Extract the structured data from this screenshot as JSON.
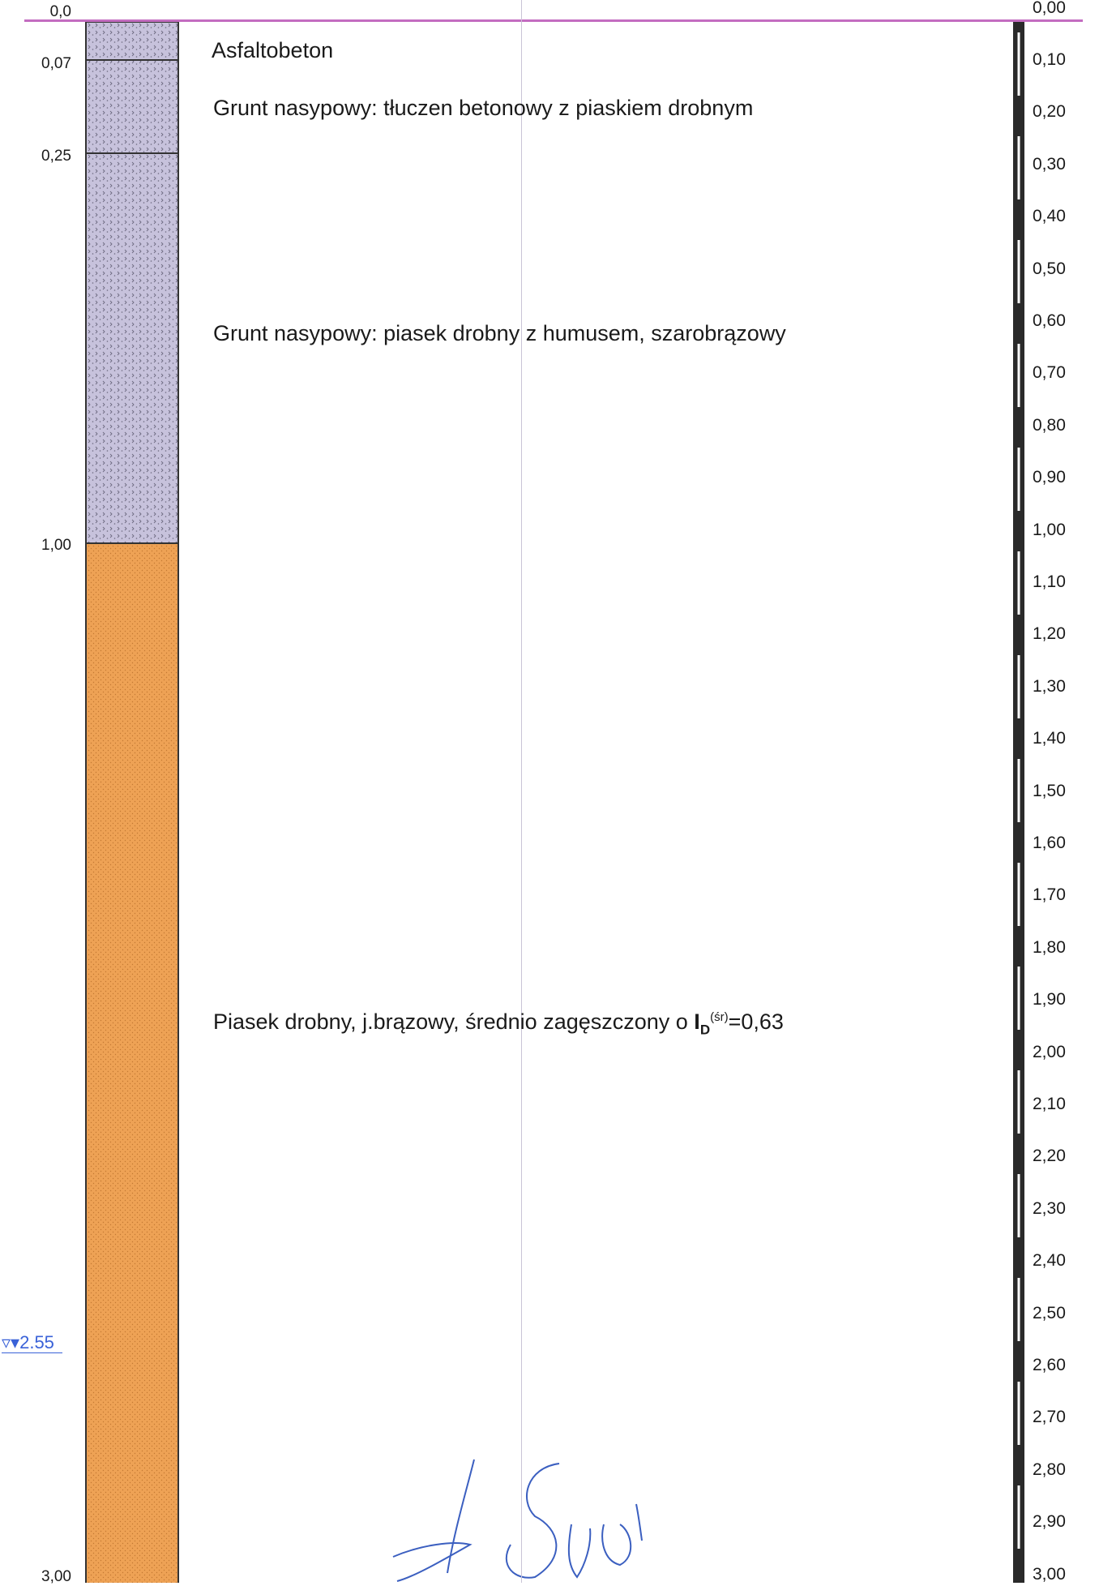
{
  "top_depth_left": "0,0",
  "scale_top_label": "0,00",
  "layer_depths": [
    "0,07",
    "0,25",
    "1,00",
    "3,00"
  ],
  "layers": [
    {
      "description": "Asfaltobeton",
      "color": "#c7c2dc"
    },
    {
      "description": "Grunt nasypowy: tłuczen betonowy z piaskiem drobnym",
      "color": "#c7c2dc"
    },
    {
      "description": "Grunt nasypowy: piasek drobny z humusem, szarobrązowy",
      "color": "#c7c2dc"
    },
    {
      "description_prefix": "Piasek drobny, j.brązowy, średnio zagęszczony o ",
      "description_symbol": "I",
      "description_subscript": "D",
      "description_superscript": "(śr)",
      "description_suffix": "=0,63",
      "color": "#eea255"
    }
  ],
  "water_level": {
    "symbol": "▿▾",
    "value": "2.55",
    "color": "#3a62d8"
  },
  "scale_labels": [
    "0,10",
    "0,20",
    "0,30",
    "0,40",
    "0,50",
    "0,60",
    "0,70",
    "0,80",
    "0,90",
    "1,00",
    "1,10",
    "1,20",
    "1,30",
    "1,40",
    "1,50",
    "1,60",
    "1,70",
    "1,80",
    "1,90",
    "2,00",
    "2,10",
    "2,20",
    "2,30",
    "2,40",
    "2,50",
    "2,60",
    "2,70",
    "2,80",
    "2,90",
    "3,00"
  ],
  "colors": {
    "top_line": "#c36cc0",
    "fill_layer": "#c7c2dc",
    "sand_layer": "#eea255",
    "scale_bar": "#2a2a2a",
    "signature": "#3b5fc0"
  }
}
